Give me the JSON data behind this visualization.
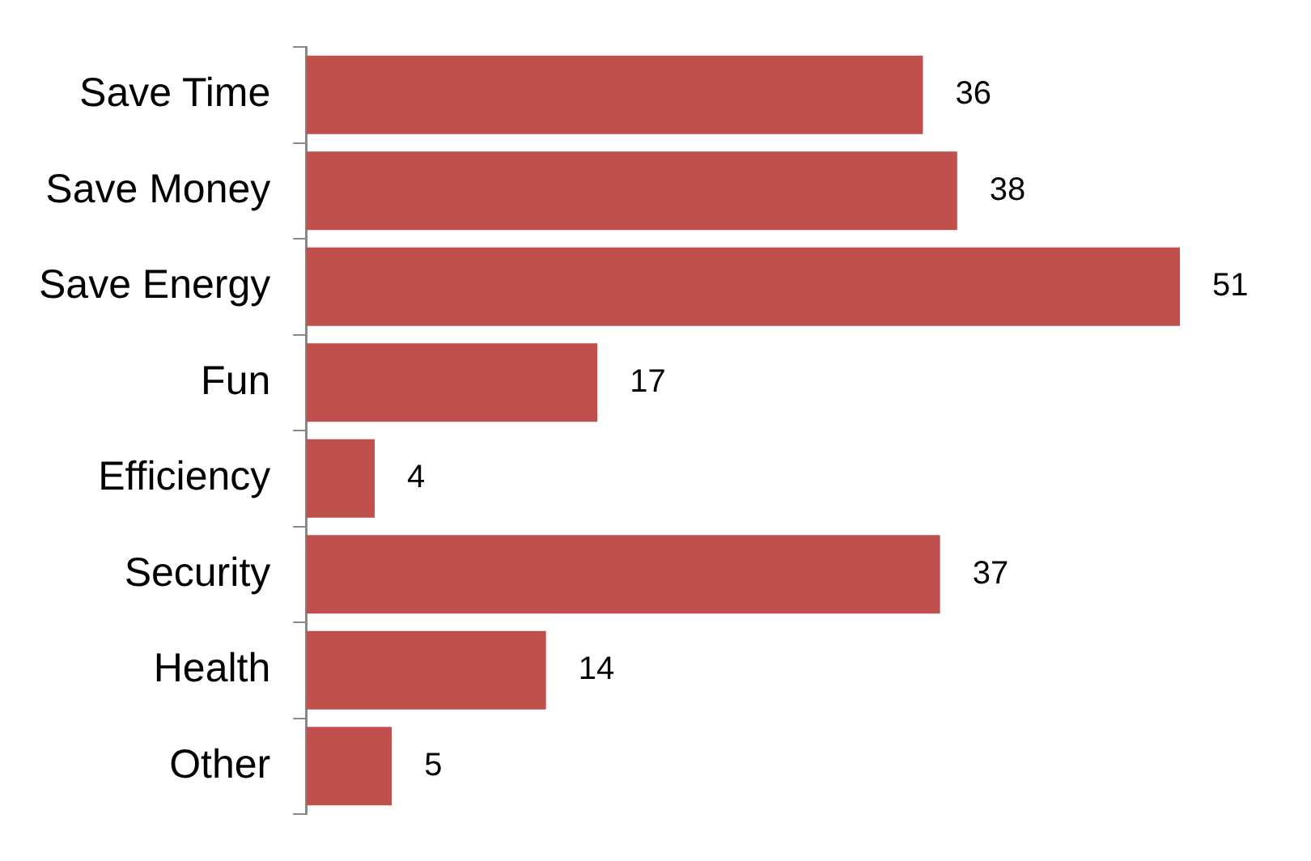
{
  "chart_data": {
    "type": "bar",
    "orientation": "horizontal",
    "categories": [
      "Save Time",
      "Save Money",
      "Save Energy",
      "Fun",
      "Efficiency",
      "Security",
      "Health",
      "Other"
    ],
    "values": [
      36,
      38,
      51,
      17,
      4,
      37,
      14,
      5
    ],
    "color": "#c0504d",
    "data_labels": true,
    "grid": false,
    "legend": false
  }
}
